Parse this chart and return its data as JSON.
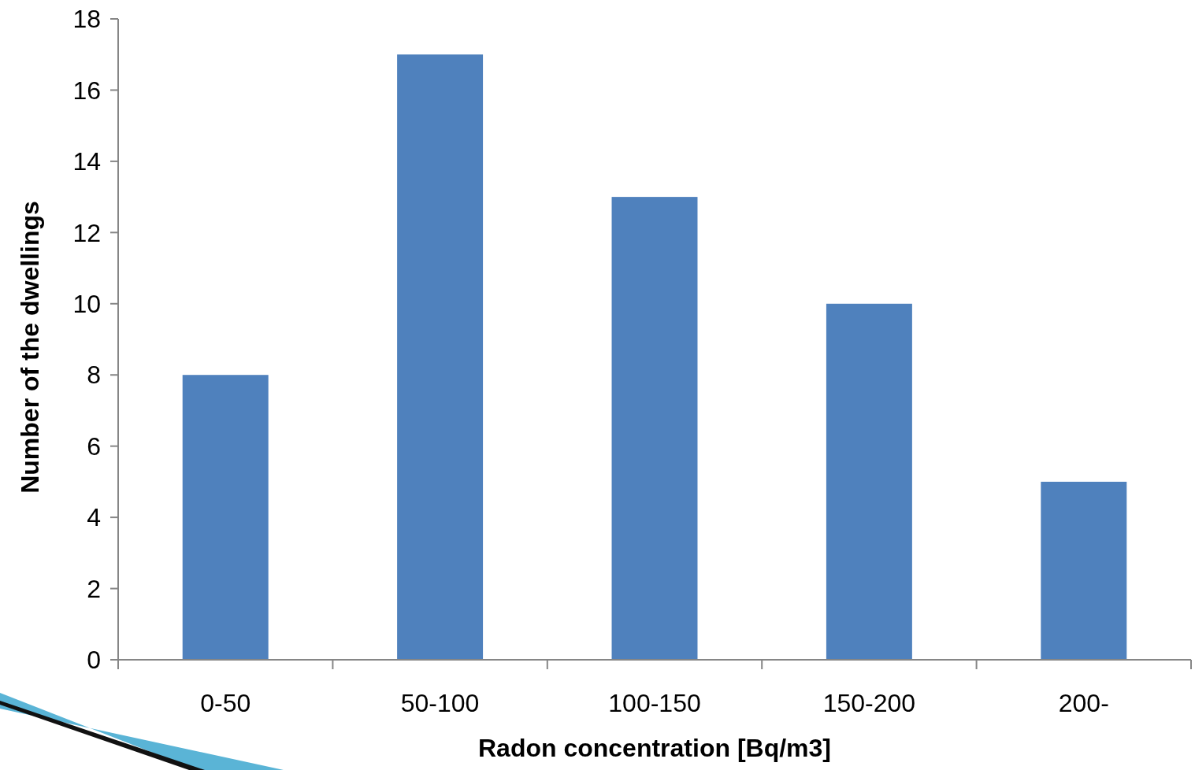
{
  "chart_data": {
    "type": "bar",
    "xlabel": "Radon concentration [Bq/m3]",
    "ylabel": "Number of the dwellings",
    "categories": [
      "0-50",
      "50-100",
      "100-150",
      "150-200",
      "200-"
    ],
    "values": [
      8,
      17,
      13,
      10,
      5
    ],
    "color": "#4f81bd",
    "ylim": [
      0,
      18
    ],
    "yticks": [
      0,
      2,
      4,
      6,
      8,
      10,
      12,
      14,
      16,
      18
    ]
  }
}
